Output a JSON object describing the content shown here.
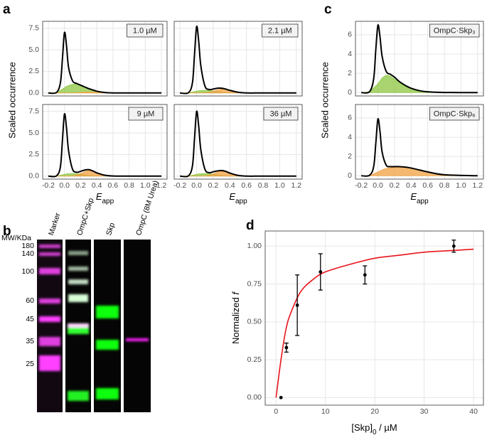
{
  "panel_labels": [
    "a",
    "b",
    "c",
    "d"
  ],
  "gel": {
    "mw_header": "MW/KDa",
    "mw_labels": [
      180,
      140,
      100,
      60,
      45,
      35,
      25
    ],
    "lanes": [
      "Marker",
      "OmpC+Skp",
      "Skp",
      "OmpC (8M Urea)"
    ]
  },
  "chart_data": [
    {
      "type": "density",
      "label": "1.0 µM",
      "y_label": "Scaled occurrence",
      "xlim": [
        -0.27,
        1.27
      ],
      "xticks": [
        -0.2,
        {
          "value": 0,
          "label": "0.0"
        },
        0.2,
        0.4,
        0.6,
        0.8,
        {
          "value": 1,
          "label": "1.0"
        },
        1.2
      ],
      "ylim": [
        -0.35,
        8.3
      ],
      "yticks": [
        {
          "value": 0,
          "label": "0.0"
        },
        2.5,
        {
          "value": 5,
          "label": "5.0"
        },
        7.5
      ],
      "grid": true,
      "x": [
        -0.2,
        -0.1,
        -0.05,
        -0.025,
        0,
        0.025,
        0.05,
        0.1,
        0.15,
        0.2,
        0.25,
        0.3,
        0.35,
        0.4,
        0.5,
        0.6,
        0.8,
        1.2
      ],
      "series": [
        {
          "style": "area",
          "color": "#8cc63f",
          "values": [
            0,
            0.05,
            0.3,
            0.45,
            0.6,
            0.75,
            0.85,
            1.0,
            1.0,
            0.85,
            0.65,
            0.45,
            0.3,
            0.18,
            0.05,
            0,
            0,
            0
          ]
        },
        {
          "style": "area",
          "color": "#f0a040",
          "values": [
            0,
            0,
            0,
            0,
            0,
            0,
            0,
            0,
            0.02,
            0.05,
            0.08,
            0.1,
            0.08,
            0.05,
            0.01,
            0,
            0,
            0
          ]
        },
        {
          "style": "line",
          "color": "#000000",
          "values": [
            0,
            0.05,
            1.2,
            4.0,
            7.0,
            5.5,
            3.0,
            1.4,
            1.1,
            0.9,
            0.7,
            0.5,
            0.35,
            0.2,
            0.05,
            0,
            0,
            0
          ]
        }
      ]
    },
    {
      "type": "density",
      "label": "2.1 µM",
      "xlim": [
        -0.27,
        1.27
      ],
      "xticks": [
        -0.2,
        {
          "value": 0,
          "label": "0.0"
        },
        0.2,
        0.4,
        0.6,
        0.8,
        {
          "value": 1,
          "label": "1.0"
        },
        1.2
      ],
      "ylim": [
        -0.35,
        8.3
      ],
      "yticks": [
        {
          "value": 0,
          "label": "0.0"
        },
        2.5,
        {
          "value": 5,
          "label": "5.0"
        },
        7.5
      ],
      "grid": true,
      "x": [
        -0.2,
        -0.1,
        -0.05,
        -0.025,
        0,
        0.025,
        0.05,
        0.1,
        0.15,
        0.2,
        0.25,
        0.3,
        0.35,
        0.4,
        0.5,
        0.6,
        0.8,
        1.2
      ],
      "series": [
        {
          "style": "area",
          "color": "#8cc63f",
          "values": [
            0,
            0.02,
            0.1,
            0.15,
            0.2,
            0.25,
            0.28,
            0.3,
            0.28,
            0.22,
            0.15,
            0.08,
            0.04,
            0.02,
            0,
            0,
            0,
            0
          ]
        },
        {
          "style": "area",
          "color": "#f0a040",
          "values": [
            0,
            0,
            0,
            0,
            0,
            0,
            0,
            0.02,
            0.08,
            0.2,
            0.35,
            0.45,
            0.4,
            0.28,
            0.08,
            0.01,
            0,
            0
          ]
        },
        {
          "style": "line",
          "color": "#000000",
          "values": [
            0,
            0.02,
            1.2,
            4.5,
            7.7,
            6.0,
            3.2,
            0.8,
            0.4,
            0.45,
            0.55,
            0.55,
            0.45,
            0.3,
            0.08,
            0,
            0,
            0
          ]
        }
      ]
    },
    {
      "type": "density",
      "label": "9 µM",
      "x_label": [
        "E",
        "app"
      ],
      "xlim": [
        -0.27,
        1.27
      ],
      "xticks": [
        -0.2,
        {
          "value": 0,
          "label": "0.0"
        },
        0.2,
        0.4,
        0.6,
        0.8,
        {
          "value": 1,
          "label": "1.0"
        },
        1.2
      ],
      "ylim": [
        -0.35,
        8.3
      ],
      "yticks": [
        {
          "value": 0,
          "label": "0.0"
        },
        2.5,
        {
          "value": 5,
          "label": "5.0"
        },
        7.5
      ],
      "grid": true,
      "x": [
        -0.2,
        -0.1,
        -0.05,
        -0.025,
        0,
        0.025,
        0.05,
        0.1,
        0.15,
        0.2,
        0.25,
        0.3,
        0.35,
        0.4,
        0.5,
        0.6,
        0.8,
        1.2
      ],
      "series": [
        {
          "style": "area",
          "color": "#8cc63f",
          "values": [
            0,
            0.02,
            0.1,
            0.15,
            0.2,
            0.25,
            0.28,
            0.3,
            0.28,
            0.22,
            0.15,
            0.08,
            0.04,
            0.02,
            0,
            0,
            0,
            0
          ]
        },
        {
          "style": "area",
          "color": "#f0a040",
          "values": [
            0,
            0,
            0,
            0,
            0,
            0,
            0,
            0.03,
            0.12,
            0.3,
            0.5,
            0.65,
            0.55,
            0.35,
            0.1,
            0.01,
            0,
            0
          ]
        },
        {
          "style": "line",
          "color": "#000000",
          "values": [
            0,
            0.02,
            1.1,
            4.2,
            7.2,
            5.6,
            3.0,
            0.8,
            0.45,
            0.55,
            0.7,
            0.75,
            0.6,
            0.38,
            0.1,
            0.01,
            0,
            0
          ]
        }
      ]
    },
    {
      "type": "density",
      "label": "36 µM",
      "x_label": [
        "E",
        "app"
      ],
      "xlim": [
        -0.27,
        1.27
      ],
      "xticks": [
        -0.2,
        {
          "value": 0,
          "label": "0.0"
        },
        0.2,
        0.4,
        0.6,
        0.8,
        {
          "value": 1,
          "label": "1.0"
        },
        1.2
      ],
      "ylim": [
        -0.35,
        8.3
      ],
      "yticks": [
        {
          "value": 0,
          "label": "0.0"
        },
        2.5,
        {
          "value": 5,
          "label": "5.0"
        },
        7.5
      ],
      "grid": true,
      "x": [
        -0.2,
        -0.1,
        -0.05,
        -0.025,
        0,
        0.025,
        0.05,
        0.1,
        0.15,
        0.2,
        0.25,
        0.3,
        0.35,
        0.4,
        0.5,
        0.6,
        0.8,
        1.2
      ],
      "series": [
        {
          "style": "area",
          "color": "#8cc63f",
          "values": [
            0,
            0.02,
            0.1,
            0.15,
            0.2,
            0.25,
            0.28,
            0.3,
            0.28,
            0.22,
            0.15,
            0.08,
            0.04,
            0.02,
            0,
            0,
            0,
            0
          ]
        },
        {
          "style": "area",
          "color": "#f0a040",
          "values": [
            0,
            0,
            0,
            0,
            0,
            0,
            0,
            0.03,
            0.1,
            0.25,
            0.45,
            0.55,
            0.48,
            0.3,
            0.08,
            0,
            0,
            0
          ]
        },
        {
          "style": "line",
          "color": "#000000",
          "values": [
            0,
            0.02,
            1.2,
            4.4,
            7.5,
            5.8,
            3.1,
            0.8,
            0.4,
            0.5,
            0.6,
            0.65,
            0.55,
            0.35,
            0.08,
            0,
            0,
            0
          ]
        }
      ]
    },
    {
      "type": "density",
      "label": "OmpC·Skp₃",
      "y_label": "Scaled occurrence",
      "xlim": [
        -0.27,
        1.27
      ],
      "xticks": [
        -0.2,
        {
          "value": 0,
          "label": "0.0"
        },
        0.2,
        0.4,
        0.6,
        0.8,
        {
          "value": 1,
          "label": "1.0"
        },
        1.2
      ],
      "ylim": [
        -0.35,
        7.4
      ],
      "yticks": [
        0,
        2,
        4,
        6
      ],
      "grid": true,
      "x": [
        -0.2,
        -0.1,
        -0.05,
        -0.025,
        0,
        0.025,
        0.05,
        0.1,
        0.15,
        0.2,
        0.25,
        0.3,
        0.35,
        0.4,
        0.5,
        0.6,
        0.8,
        1.2
      ],
      "series": [
        {
          "style": "area",
          "color": "#8cc63f",
          "values": [
            0,
            0.1,
            0.5,
            0.7,
            0.9,
            1.2,
            1.5,
            1.8,
            1.7,
            1.4,
            1.1,
            0.8,
            0.55,
            0.38,
            0.15,
            0.05,
            0,
            0
          ]
        },
        {
          "style": "line",
          "color": "#000000",
          "values": [
            0,
            0.1,
            1.5,
            4.5,
            7.0,
            5.8,
            3.8,
            2.2,
            1.9,
            1.6,
            1.2,
            0.9,
            0.65,
            0.45,
            0.2,
            0.08,
            0.01,
            0
          ]
        }
      ]
    },
    {
      "type": "density",
      "label": "OmpC·Skp₆",
      "x_label": [
        "E",
        "app"
      ],
      "xlim": [
        -0.27,
        1.27
      ],
      "xticks": [
        -0.2,
        {
          "value": 0,
          "label": "0.0"
        },
        0.2,
        0.4,
        0.6,
        0.8,
        {
          "value": 1,
          "label": "1.0"
        },
        1.2
      ],
      "ylim": [
        -0.35,
        7.4
      ],
      "yticks": [
        0,
        2,
        4,
        6
      ],
      "grid": true,
      "x": [
        -0.2,
        -0.1,
        -0.05,
        -0.025,
        0,
        0.025,
        0.05,
        0.1,
        0.15,
        0.2,
        0.25,
        0.3,
        0.35,
        0.4,
        0.5,
        0.6,
        0.8,
        1.2
      ],
      "series": [
        {
          "style": "area",
          "color": "#f0a040",
          "values": [
            0,
            0.02,
            0.2,
            0.3,
            0.4,
            0.5,
            0.6,
            0.75,
            0.82,
            0.88,
            0.9,
            0.9,
            0.86,
            0.78,
            0.6,
            0.4,
            0.1,
            0
          ]
        },
        {
          "style": "line",
          "color": "#000000",
          "values": [
            0,
            0.05,
            1.0,
            3.4,
            5.9,
            4.6,
            2.5,
            1.1,
            0.95,
            0.95,
            0.95,
            0.92,
            0.88,
            0.8,
            0.6,
            0.4,
            0.1,
            0
          ]
        }
      ]
    },
    {
      "type": "scatter",
      "x_label": [
        "[Skp]",
        "0",
        " / µM"
      ],
      "y_label": [
        "Normalized ",
        "f"
      ],
      "xlim": [
        -2.2,
        42
      ],
      "xticks": [
        0,
        10,
        20,
        30,
        40
      ],
      "ylim": [
        -0.05,
        1.1
      ],
      "yticks": [
        {
          "value": 0,
          "label": "0.00"
        },
        {
          "value": 0.25,
          "label": "0.25"
        },
        {
          "value": 0.5,
          "label": "0.50"
        },
        {
          "value": 0.75,
          "label": "0.75"
        },
        {
          "value": 1,
          "label": "1.00"
        }
      ],
      "grid": true,
      "x": [
        1,
        2.1,
        4.3,
        9,
        18,
        36
      ],
      "values": [
        0,
        0.33,
        0.61,
        0.83,
        0.81,
        1.0
      ],
      "errors": [
        0,
        0.03,
        0.2,
        0.12,
        0.06,
        0.04
      ],
      "color": "#000000",
      "fit": {
        "color": "#e8141b",
        "x": [
          0,
          1,
          2,
          3,
          5,
          7.5,
          10,
          15,
          20,
          25,
          30,
          35,
          40
        ],
        "values": [
          0,
          0.25,
          0.45,
          0.56,
          0.7,
          0.78,
          0.83,
          0.88,
          0.92,
          0.94,
          0.96,
          0.97,
          0.98
        ]
      }
    }
  ]
}
